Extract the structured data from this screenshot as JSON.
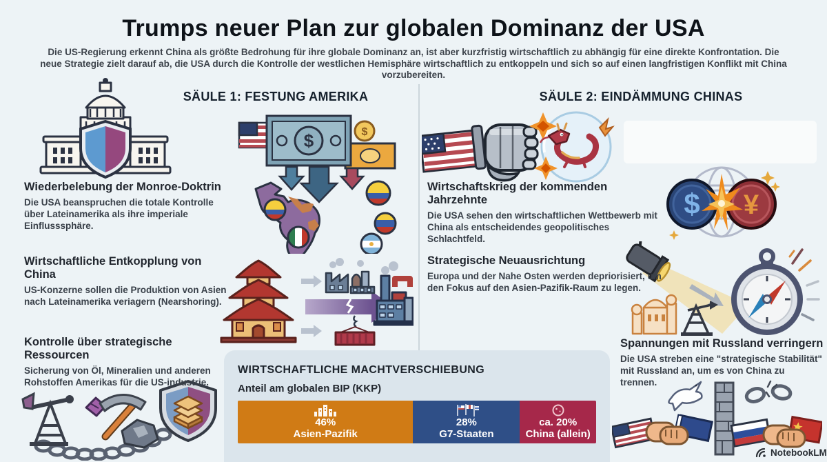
{
  "header": {
    "title": "Trumps neuer Plan zur globalen Dominanz der USA",
    "subtitle": "Die US-Regierung erkennt China als größte Bedrohung für ihre globale Dominanz an, ist aber kurzfristig wirtschaftlich zu abhängig für eine direkte Konfrontation. Die neue Strategie zielt darauf ab, die USA durch die Kontrolle der westlichen Hemisphäre wirtschaftlich zu entkoppeln und sich so auf einen langfristigen Konflikt mit China vorzubereiten."
  },
  "columns": {
    "left": {
      "header": "SÄULE 1: FESTUNG AMERIKA",
      "sections": [
        {
          "title": "Wiederbelebung der Monroe-Doktrin",
          "body": "Die USA beanspruchen die totale Kontrolle über Lateinamerika als ihre imperiale Einflusssphäre."
        },
        {
          "title": "Wirtschaftliche Entkopplung von China",
          "body": "US-Konzerne sollen die Produktion von Asien nach Lateinamerika veriagern (Nearshoring)."
        },
        {
          "title": "Kontrolle über strategische Ressourcen",
          "body": "Sicherung von Öl, Mineralien und anderen Rohstoffen Amerikas für die US-industrie."
        }
      ]
    },
    "right": {
      "header": "SÄULE 2: EINDÄMMUNG CHINAS",
      "sections": [
        {
          "title": "Wirtschaftskrieg der kommenden Jahrzehnte",
          "body": "Die USA sehen den wirtschaftlichen Wettbewerb mit China als entscheidendes geopolitisches Schlachtfeld."
        },
        {
          "title": "Strategische Neuausrichtung",
          "body": "Europa und der Nahe Osten werden depriorisiert, um den Fokus auf den Asien-Pazifik-Raum zu legen."
        },
        {
          "title": "Spannungen mit Russland verringern",
          "body": "Die USA streben eine \"strategische Stabilität\" mit Russland an, um es von China zu trennen."
        }
      ]
    }
  },
  "chart": {
    "title": "WIRTSCHAFTLICHE MACHTVERSCHIEBUNG",
    "subtitle": "Anteil am globalen BIP (KKP)",
    "segments": [
      {
        "pct": "46%",
        "label": "Asien-Pazifik",
        "value": 46,
        "color": "#d07b15",
        "icon": "city-skyline-icon"
      },
      {
        "pct": "28%",
        "label": "G7-Staaten",
        "value": 28,
        "color": "#2f4f87",
        "icon": "g7-flags-icon"
      },
      {
        "pct": "ca. 20%",
        "label": "China (allein)",
        "value": 20,
        "color": "#a6284a",
        "icon": "china-badge-icon"
      }
    ]
  },
  "chart_data": {
    "type": "bar",
    "title": "WIRTSCHAFTLICHE MACHTVERSCHIEBUNG",
    "subtitle": "Anteil am globalen BIP (KKP)",
    "categories": [
      "Asien-Pazifik",
      "G7-Staaten",
      "China (allein)"
    ],
    "values": [
      46,
      28,
      20
    ],
    "value_labels": [
      "46%",
      "28%",
      "ca. 20%"
    ],
    "colors": [
      "#d07b15",
      "#2f4f87",
      "#a6284a"
    ],
    "orientation": "horizontal-stacked",
    "legend": "none"
  },
  "illustrations": [
    "capitol-with-shield-illustration",
    "us-dollars-to-latam-map-illustration",
    "pagoda-to-factories-nearshoring-illustration",
    "us-fist-vs-china-dragon-illustration",
    "dollar-vs-yuan-globe-illustration",
    "spotlight-compass-asia-pivot-illustration",
    "oil-minerals-shield-chain-illustration",
    "us-russia-china-handshakes-illustration"
  ],
  "colors": {
    "background": "#edf3f6",
    "card": "#dbe5ec",
    "accent_orange": "#d07b15",
    "accent_blue": "#2f4f87",
    "accent_red": "#a6284a"
  },
  "footer": {
    "brand": "NotebookLM"
  }
}
